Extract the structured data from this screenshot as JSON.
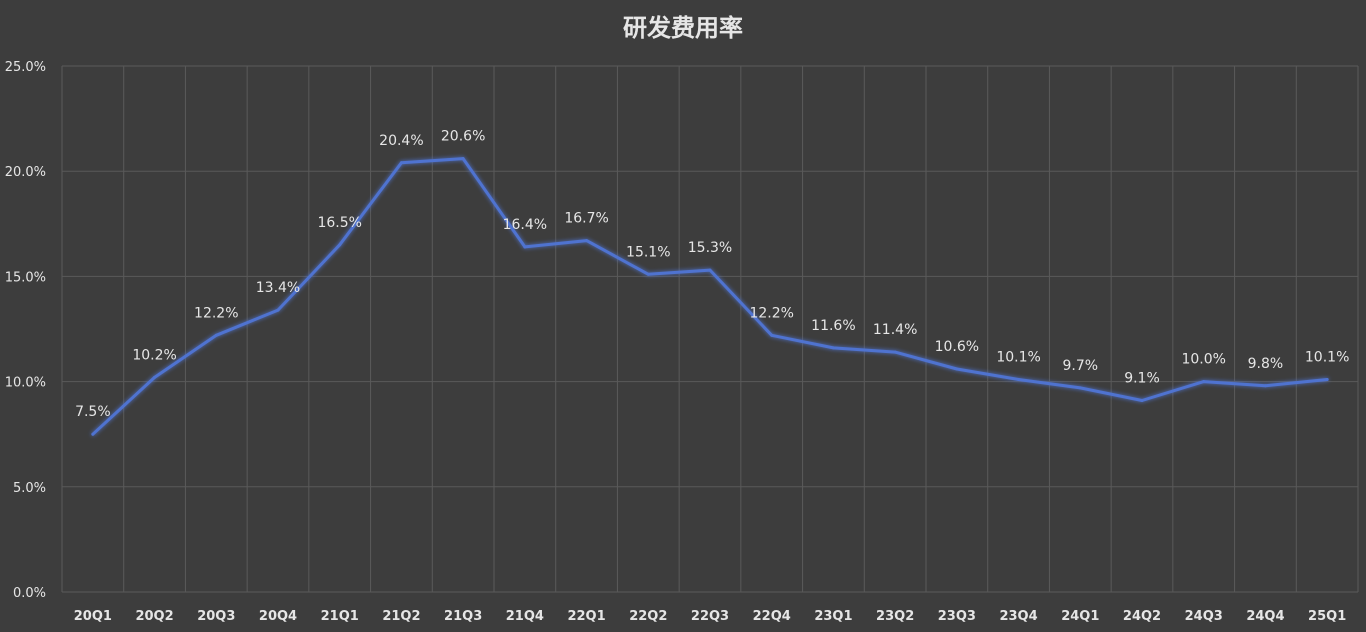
{
  "chart_data": {
    "type": "line",
    "title": "研发费用率",
    "categories": [
      "20Q1",
      "20Q2",
      "20Q3",
      "20Q4",
      "21Q1",
      "21Q2",
      "21Q3",
      "21Q4",
      "22Q1",
      "22Q2",
      "22Q3",
      "22Q4",
      "23Q1",
      "23Q2",
      "23Q3",
      "23Q4",
      "24Q1",
      "24Q2",
      "24Q3",
      "24Q4",
      "25Q1"
    ],
    "series": [
      {
        "values": [
          7.5,
          10.2,
          12.2,
          13.4,
          16.5,
          20.4,
          20.6,
          16.4,
          16.7,
          15.1,
          15.3,
          12.2,
          11.6,
          11.4,
          10.6,
          10.1,
          9.7,
          9.1,
          10.0,
          9.8,
          10.1
        ],
        "data_labels": [
          "7.5%",
          "10.2%",
          "12.2%",
          "13.4%",
          "16.5%",
          "20.4%",
          "20.6%",
          "16.4%",
          "16.7%",
          "15.1%",
          "15.3%",
          "12.2%",
          "11.6%",
          "11.4%",
          "10.6%",
          "10.1%",
          "9.7%",
          "9.1%",
          "10.0%",
          "9.8%",
          "10.1%"
        ],
        "color": "#4f73d0"
      }
    ],
    "y_ticks": [
      "0.0%",
      "5.0%",
      "10.0%",
      "15.0%",
      "20.0%",
      "25.0%"
    ],
    "ylim": [
      0,
      25
    ],
    "xlabel": "",
    "ylabel": "",
    "grid": true,
    "legend": "none"
  },
  "colors": {
    "background": "#3d3d3d",
    "grid": "#5a5a5a",
    "line": "#4f73d0",
    "text": "#e6e6e6"
  }
}
